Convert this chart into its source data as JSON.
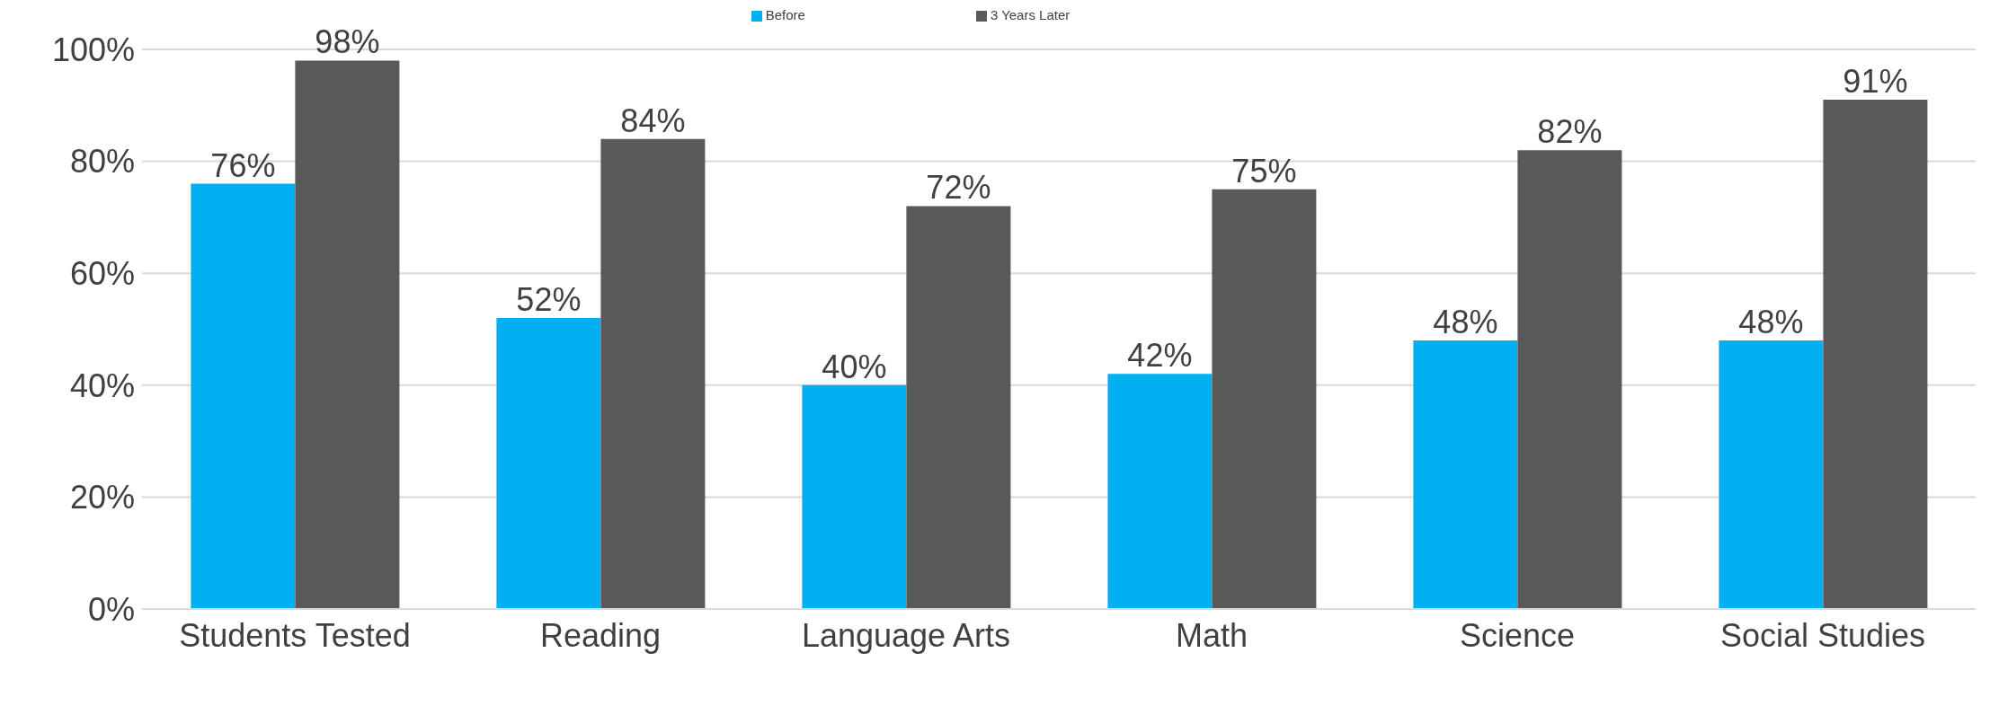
{
  "chart_data": {
    "type": "bar",
    "categories": [
      "Students Tested",
      "Reading",
      "Language Arts",
      "Math",
      "Science",
      "Social Studies"
    ],
    "series": [
      {
        "name": "Before",
        "color": "#00b0f0",
        "values": [
          76,
          52,
          40,
          42,
          48,
          48
        ],
        "value_labels": [
          "76%",
          "52%",
          "40%",
          "42%",
          "48%",
          "48%"
        ]
      },
      {
        "name": "3 Years Later",
        "color": "#595959",
        "values": [
          98,
          84,
          72,
          75,
          82,
          91
        ],
        "value_labels": [
          "98%",
          "84%",
          "72%",
          "75%",
          "82%",
          "91%"
        ]
      }
    ],
    "ylim": [
      0,
      100
    ],
    "yticks": [
      {
        "value": 0,
        "label": "0%"
      },
      {
        "value": 20,
        "label": "20%"
      },
      {
        "value": 40,
        "label": "40%"
      },
      {
        "value": 60,
        "label": "60%"
      },
      {
        "value": 80,
        "label": "80%"
      },
      {
        "value": 100,
        "label": "100%"
      }
    ],
    "grid": "y",
    "legend": "top"
  }
}
